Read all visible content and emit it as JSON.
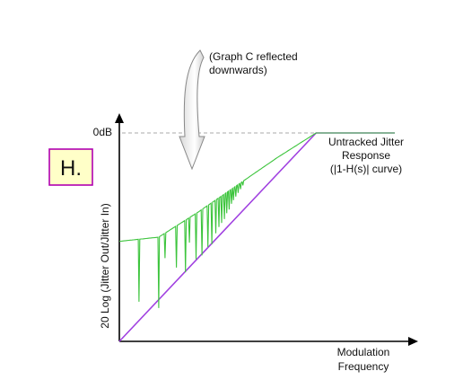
{
  "badge": {
    "text": "H.",
    "bg": "#ffffc8",
    "border": "#b000b0"
  },
  "annotation": {
    "lines": [
      "(Graph C reflected",
      "downwards)"
    ]
  },
  "chart_data": {
    "type": "line",
    "ylabel": "20 Log (Jitter Out/Jitter In)",
    "xlabel_lines": [
      "Modulation",
      "Frequency"
    ],
    "y_reference_label": "0dB",
    "curve_label_lines": [
      "Untracked Jitter",
      "Response",
      "(|1-H(s)| curve)"
    ],
    "colors": {
      "measured": "#3cc43c",
      "ideal": "#a040e0",
      "reference": "#aaaaaa",
      "axes": "#000000"
    },
    "series": [
      {
        "kind": "ideal",
        "points": [
          [
            0,
            0
          ],
          [
            0.5,
            1
          ],
          [
            0.7,
            1
          ]
        ]
      },
      {
        "kind": "measured",
        "baseline": [
          [
            0,
            0.48
          ],
          [
            0.1,
            0.5
          ],
          [
            0.2,
            0.62
          ],
          [
            0.3,
            0.75
          ],
          [
            0.4,
            0.88
          ],
          [
            0.5,
            1.0
          ],
          [
            0.7,
            1.0
          ]
        ]
      }
    ],
    "notches": [
      {
        "x": 0.05,
        "depth": 0.3
      },
      {
        "x": 0.1,
        "depth": 0.34
      },
      {
        "x": 0.116,
        "depth": 0.12
      },
      {
        "x": 0.145,
        "depth": 0.2
      },
      {
        "x": 0.168,
        "depth": 0.25
      },
      {
        "x": 0.178,
        "depth": 0.12
      },
      {
        "x": 0.195,
        "depth": 0.22
      },
      {
        "x": 0.21,
        "depth": 0.22
      },
      {
        "x": 0.225,
        "depth": 0.2
      },
      {
        "x": 0.235,
        "depth": 0.2
      },
      {
        "x": 0.245,
        "depth": 0.16
      },
      {
        "x": 0.253,
        "depth": 0.14
      },
      {
        "x": 0.26,
        "depth": 0.13
      },
      {
        "x": 0.267,
        "depth": 0.12
      },
      {
        "x": 0.273,
        "depth": 0.1
      },
      {
        "x": 0.279,
        "depth": 0.09
      },
      {
        "x": 0.285,
        "depth": 0.07
      },
      {
        "x": 0.29,
        "depth": 0.06
      },
      {
        "x": 0.296,
        "depth": 0.05
      },
      {
        "x": 0.302,
        "depth": 0.04
      },
      {
        "x": 0.308,
        "depth": 0.03
      },
      {
        "x": 0.314,
        "depth": 0.02
      }
    ]
  }
}
